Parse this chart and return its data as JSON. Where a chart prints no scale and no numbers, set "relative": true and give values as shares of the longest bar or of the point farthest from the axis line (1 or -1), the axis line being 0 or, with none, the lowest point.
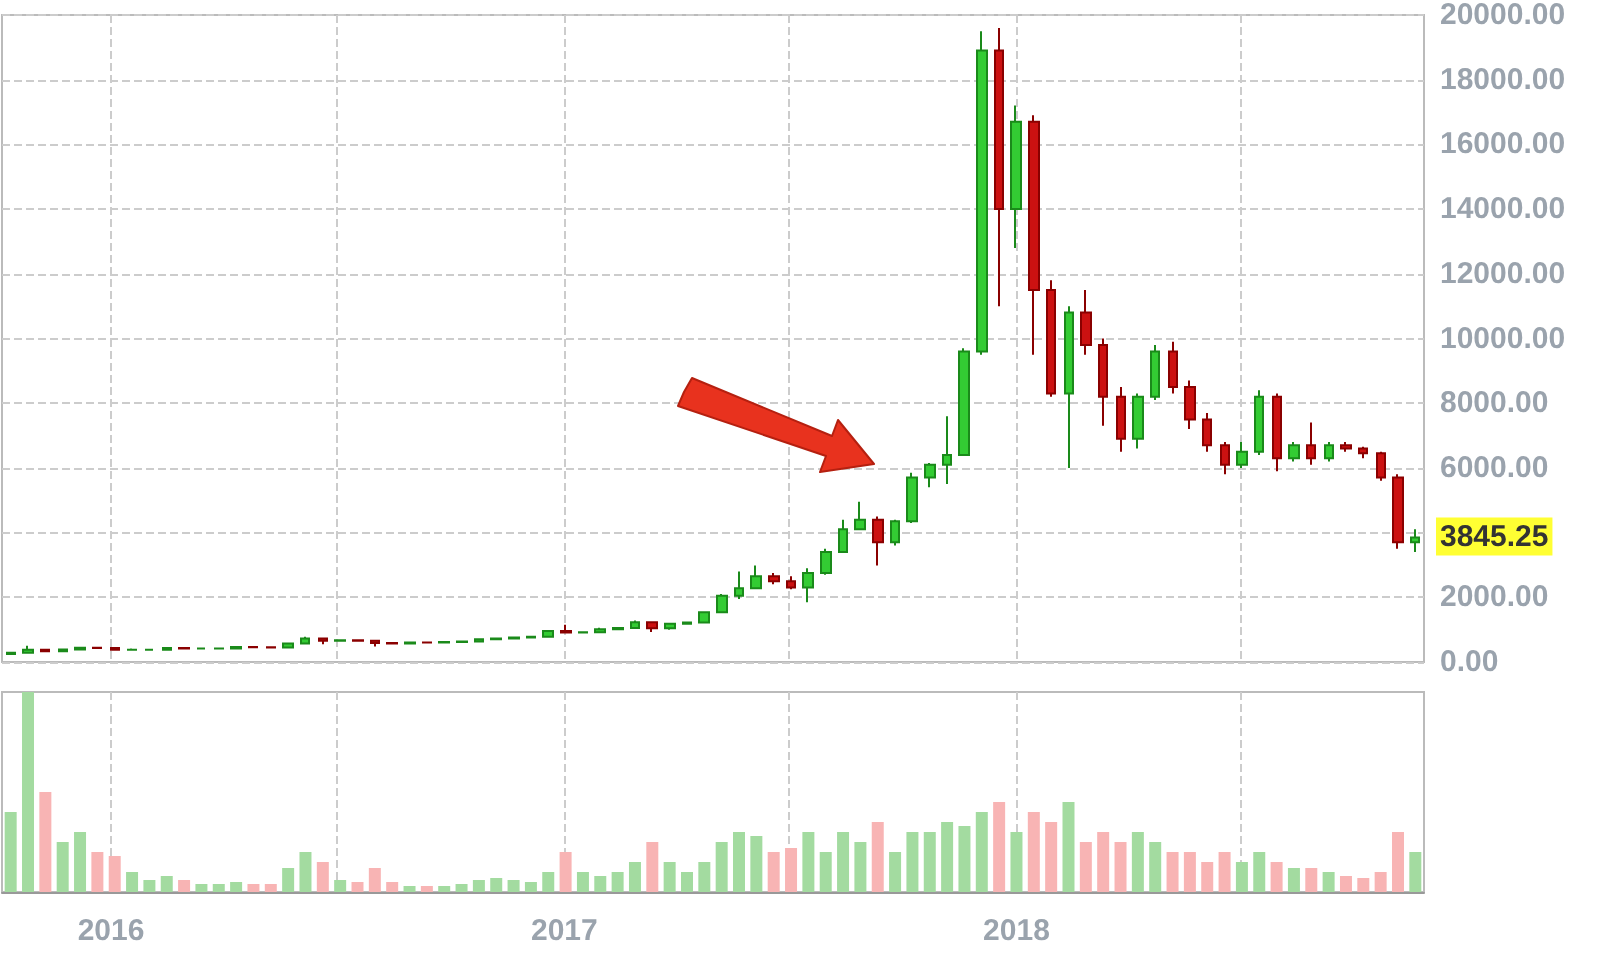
{
  "chart_data": [
    {
      "type": "candlestick",
      "x": [
        "2015-10-12",
        "2015-10-26",
        "2015-11-09",
        "2015-11-23",
        "2015-12-07",
        "2015-12-21",
        "2016-01-04",
        "2016-01-18",
        "2016-02-01",
        "2016-02-15",
        "2016-02-29",
        "2016-03-14",
        "2016-03-28",
        "2016-04-11",
        "2016-04-25",
        "2016-05-09",
        "2016-05-23",
        "2016-06-06",
        "2016-06-20",
        "2016-07-04",
        "2016-07-18",
        "2016-08-01",
        "2016-08-15",
        "2016-08-29",
        "2016-09-12",
        "2016-09-26",
        "2016-10-10",
        "2016-10-24",
        "2016-11-07",
        "2016-11-21",
        "2016-12-05",
        "2016-12-19",
        "2017-01-02",
        "2017-01-16",
        "2017-01-30",
        "2017-02-13",
        "2017-02-27",
        "2017-03-13",
        "2017-03-27",
        "2017-04-10",
        "2017-04-24",
        "2017-05-08",
        "2017-05-22",
        "2017-06-05",
        "2017-06-19",
        "2017-07-03",
        "2017-07-17",
        "2017-07-31",
        "2017-08-14",
        "2017-08-28",
        "2017-09-11",
        "2017-09-25",
        "2017-10-09",
        "2017-10-23",
        "2017-11-06",
        "2017-11-20",
        "2017-12-04",
        "2017-12-18",
        "2018-01-01",
        "2018-01-15",
        "2018-01-29",
        "2018-02-12",
        "2018-02-26",
        "2018-03-12",
        "2018-03-26",
        "2018-04-09",
        "2018-04-23",
        "2018-05-07",
        "2018-05-21",
        "2018-06-04",
        "2018-06-18",
        "2018-07-02",
        "2018-07-16",
        "2018-07-30",
        "2018-08-13",
        "2018-08-27",
        "2018-09-10",
        "2018-09-24",
        "2018-10-08",
        "2018-10-22",
        "2018-11-05",
        "2018-11-19"
      ],
      "ohlc": [
        [
          245,
          290,
          240,
          285
        ],
        [
          285,
          500,
          280,
          380
        ],
        [
          380,
          390,
          310,
          330
        ],
        [
          330,
          400,
          320,
          390
        ],
        [
          390,
          470,
          380,
          440
        ],
        [
          440,
          460,
          420,
          430
        ],
        [
          430,
          460,
          370,
          380
        ],
        [
          380,
          420,
          360,
          380
        ],
        [
          380,
          390,
          370,
          380
        ],
        [
          380,
          440,
          380,
          430
        ],
        [
          430,
          440,
          400,
          415
        ],
        [
          415,
          420,
          405,
          415
        ],
        [
          415,
          425,
          410,
          420
        ],
        [
          420,
          470,
          420,
          460
        ],
        [
          460,
          465,
          440,
          455
        ],
        [
          455,
          460,
          440,
          445
        ],
        [
          445,
          580,
          440,
          570
        ],
        [
          570,
          780,
          570,
          730
        ],
        [
          730,
          760,
          550,
          660
        ],
        [
          660,
          700,
          640,
          670
        ],
        [
          670,
          680,
          640,
          655
        ],
        [
          655,
          660,
          480,
          590
        ],
        [
          590,
          600,
          560,
          575
        ],
        [
          575,
          620,
          570,
          605
        ],
        [
          605,
          620,
          595,
          600
        ],
        [
          600,
          620,
          600,
          615
        ],
        [
          615,
          640,
          610,
          630
        ],
        [
          630,
          720,
          630,
          700
        ],
        [
          700,
          750,
          690,
          730
        ],
        [
          730,
          770,
          720,
          760
        ],
        [
          760,
          790,
          750,
          780
        ],
        [
          780,
          980,
          780,
          960
        ],
        [
          960,
          1150,
          880,
          910
        ],
        [
          910,
          930,
          880,
          920
        ],
        [
          920,
          1060,
          920,
          1010
        ],
        [
          1010,
          1060,
          990,
          1050
        ],
        [
          1050,
          1280,
          1050,
          1230
        ],
        [
          1230,
          1250,
          930,
          1040
        ],
        [
          1040,
          1200,
          1000,
          1180
        ],
        [
          1180,
          1230,
          1150,
          1220
        ],
        [
          1220,
          1550,
          1220,
          1540
        ],
        [
          1540,
          2100,
          1540,
          2050
        ],
        [
          2050,
          2800,
          1950,
          2280
        ],
        [
          2280,
          2980,
          2280,
          2650
        ],
        [
          2650,
          2750,
          2400,
          2500
        ],
        [
          2500,
          2650,
          2250,
          2300
        ],
        [
          2300,
          2900,
          1850,
          2750
        ],
        [
          2750,
          3500,
          2700,
          3400
        ],
        [
          3400,
          4400,
          3400,
          4100
        ],
        [
          4100,
          4950,
          4100,
          4400
        ],
        [
          4400,
          4500,
          2980,
          3700
        ],
        [
          3700,
          4400,
          3600,
          4350
        ],
        [
          4350,
          5850,
          4300,
          5700
        ],
        [
          5700,
          6150,
          5400,
          6100
        ],
        [
          6100,
          7600,
          5500,
          6400
        ],
        [
          6400,
          9700,
          6400,
          9600
        ],
        [
          9600,
          19500,
          9500,
          18900
        ],
        [
          18900,
          19600,
          11000,
          14000
        ],
        [
          14000,
          17200,
          12800,
          16700
        ],
        [
          16700,
          16900,
          9500,
          11500
        ],
        [
          11500,
          11800,
          8200,
          8300
        ],
        [
          8300,
          11000,
          6000,
          10800
        ],
        [
          10800,
          11500,
          9500,
          9800
        ],
        [
          9800,
          10000,
          7300,
          8200
        ],
        [
          8200,
          8500,
          6500,
          6900
        ],
        [
          6900,
          8300,
          6600,
          8200
        ],
        [
          8200,
          9800,
          8100,
          9600
        ],
        [
          9600,
          9900,
          8300,
          8500
        ],
        [
          8500,
          8700,
          7200,
          7500
        ],
        [
          7500,
          7700,
          6500,
          6700
        ],
        [
          6700,
          6800,
          5800,
          6100
        ],
        [
          6100,
          6800,
          6000,
          6500
        ],
        [
          6500,
          8400,
          6400,
          8200
        ],
        [
          8200,
          8300,
          5900,
          6300
        ],
        [
          6300,
          6800,
          6200,
          6700
        ],
        [
          6700,
          7400,
          6100,
          6300
        ],
        [
          6300,
          6800,
          6200,
          6700
        ],
        [
          6700,
          6800,
          6500,
          6600
        ],
        [
          6600,
          6650,
          6300,
          6450
        ],
        [
          6450,
          6500,
          5600,
          5700
        ],
        [
          5700,
          5800,
          3500,
          3700
        ],
        [
          3700,
          4100,
          3400,
          3845.25
        ]
      ],
      "xlim": [
        "2015-10-05",
        "2018-11-26"
      ],
      "xticks": [
        {
          "value": "2016-01-01",
          "label": null
        },
        {
          "value": "2016-07-01",
          "label": null
        },
        {
          "value": "2017-01-01",
          "label": null
        },
        {
          "value": "2017-07-01",
          "label": null
        },
        {
          "value": "2018-01-01",
          "label": null
        },
        {
          "value": "2018-07-01",
          "label": null
        }
      ],
      "ylim": [
        0,
        20000
      ],
      "yticks": [
        {
          "value": 0,
          "label": "0.00"
        },
        {
          "value": 2000,
          "label": "2000.00"
        },
        {
          "value": 4000,
          "label": null
        },
        {
          "value": 6000,
          "label": "6000.00"
        },
        {
          "value": 8000,
          "label": "8000.00"
        },
        {
          "value": 10000,
          "label": "10000.00"
        },
        {
          "value": 12000,
          "label": "12000.00"
        },
        {
          "value": 14000,
          "label": "14000.00"
        },
        {
          "value": 16000,
          "label": "16000.00"
        },
        {
          "value": 18000,
          "label": "18000.00"
        },
        {
          "value": 20000,
          "label": "20000.00"
        }
      ],
      "annotations": [
        "3845.25"
      ],
      "grid": true,
      "tick_labels": "y"
    },
    {
      "type": "bar",
      "relative": true,
      "tick_labels": "x",
      "x": [
        "2015-10-12",
        "2015-10-26",
        "2015-11-09",
        "2015-11-23",
        "2015-12-07",
        "2015-12-21",
        "2016-01-04",
        "2016-01-18",
        "2016-02-01",
        "2016-02-15",
        "2016-02-29",
        "2016-03-14",
        "2016-03-28",
        "2016-04-11",
        "2016-04-25",
        "2016-05-09",
        "2016-05-23",
        "2016-06-06",
        "2016-06-20",
        "2016-07-04",
        "2016-07-18",
        "2016-08-01",
        "2016-08-15",
        "2016-08-29",
        "2016-09-12",
        "2016-09-26",
        "2016-10-10",
        "2016-10-24",
        "2016-11-07",
        "2016-11-21",
        "2016-12-05",
        "2016-12-19",
        "2017-01-02",
        "2017-01-16",
        "2017-01-30",
        "2017-02-13",
        "2017-02-27",
        "2017-03-13",
        "2017-03-27",
        "2017-04-10",
        "2017-04-24",
        "2017-05-08",
        "2017-05-22",
        "2017-06-05",
        "2017-06-19",
        "2017-07-03",
        "2017-07-17",
        "2017-07-31",
        "2017-08-14",
        "2017-08-28",
        "2017-09-11",
        "2017-09-25",
        "2017-10-09",
        "2017-10-23",
        "2017-11-06",
        "2017-11-20",
        "2017-12-04",
        "2017-12-18",
        "2018-01-01",
        "2018-01-15",
        "2018-01-29",
        "2018-02-12",
        "2018-02-26",
        "2018-03-12",
        "2018-03-26",
        "2018-04-09",
        "2018-04-23",
        "2018-05-07",
        "2018-05-21",
        "2018-06-04",
        "2018-06-18",
        "2018-07-02",
        "2018-07-16",
        "2018-07-30",
        "2018-08-13",
        "2018-08-27",
        "2018-09-10",
        "2018-09-24",
        "2018-10-08",
        "2018-10-22",
        "2018-11-05",
        "2018-11-19"
      ],
      "values": [
        0.4,
        1.0,
        0.5,
        0.25,
        0.3,
        0.2,
        0.18,
        0.1,
        0.06,
        0.08,
        0.06,
        0.04,
        0.04,
        0.05,
        0.04,
        0.04,
        0.12,
        0.2,
        0.15,
        0.06,
        0.05,
        0.12,
        0.05,
        0.03,
        0.03,
        0.03,
        0.04,
        0.06,
        0.07,
        0.06,
        0.05,
        0.1,
        0.2,
        0.1,
        0.08,
        0.1,
        0.15,
        0.25,
        0.15,
        0.1,
        0.15,
        0.25,
        0.3,
        0.28,
        0.2,
        0.22,
        0.3,
        0.2,
        0.3,
        0.25,
        0.35,
        0.2,
        0.3,
        0.3,
        0.35,
        0.33,
        0.4,
        0.45,
        0.3,
        0.4,
        0.35,
        0.45,
        0.25,
        0.3,
        0.25,
        0.3,
        0.25,
        0.2,
        0.2,
        0.15,
        0.2,
        0.15,
        0.2,
        0.15,
        0.12,
        0.12,
        0.1,
        0.08,
        0.07,
        0.1,
        0.3,
        0.2
      ],
      "colors": [
        "#a3dba0",
        "#a3dba0",
        "#f8b4b4",
        "#a3dba0",
        "#a3dba0",
        "#f8b4b4",
        "#f8b4b4",
        "#a3dba0",
        "#a3dba0",
        "#a3dba0",
        "#f8b4b4",
        "#a3dba0",
        "#a3dba0",
        "#a3dba0",
        "#f8b4b4",
        "#f8b4b4",
        "#a3dba0",
        "#a3dba0",
        "#f8b4b4",
        "#a3dba0",
        "#f8b4b4",
        "#f8b4b4",
        "#f8b4b4",
        "#a3dba0",
        "#f8b4b4",
        "#a3dba0",
        "#a3dba0",
        "#a3dba0",
        "#a3dba0",
        "#a3dba0",
        "#a3dba0",
        "#a3dba0",
        "#f8b4b4",
        "#a3dba0",
        "#a3dba0",
        "#a3dba0",
        "#a3dba0",
        "#f8b4b4",
        "#a3dba0",
        "#a3dba0",
        "#a3dba0",
        "#a3dba0",
        "#a3dba0",
        "#a3dba0",
        "#f8b4b4",
        "#f8b4b4",
        "#a3dba0",
        "#a3dba0",
        "#a3dba0",
        "#a3dba0",
        "#f8b4b4",
        "#a3dba0",
        "#a3dba0",
        "#a3dba0",
        "#a3dba0",
        "#a3dba0",
        "#a3dba0",
        "#f8b4b4",
        "#a3dba0",
        "#f8b4b4",
        "#f8b4b4",
        "#a3dba0",
        "#f8b4b4",
        "#f8b4b4",
        "#f8b4b4",
        "#a3dba0",
        "#a3dba0",
        "#f8b4b4",
        "#f8b4b4",
        "#f8b4b4",
        "#f8b4b4",
        "#a3dba0",
        "#a3dba0",
        "#f8b4b4",
        "#a3dba0",
        "#f8b4b4",
        "#a3dba0",
        "#f8b4b4",
        "#f8b4b4",
        "#f8b4b4",
        "#f8b4b4",
        "#a3dba0"
      ],
      "xlim": [
        "2015-10-05",
        "2018-11-26"
      ],
      "grid": "x",
      "xticks": [
        {
          "value": "2016-01-01",
          "label": "2016"
        },
        {
          "value": "2016-07-01",
          "label": null
        },
        {
          "value": "2017-01-01",
          "label": "2017"
        },
        {
          "value": "2017-07-01",
          "label": null
        },
        {
          "value": "2018-01-01",
          "label": "2018"
        },
        {
          "value": "2018-07-01",
          "label": null
        }
      ]
    }
  ]
}
